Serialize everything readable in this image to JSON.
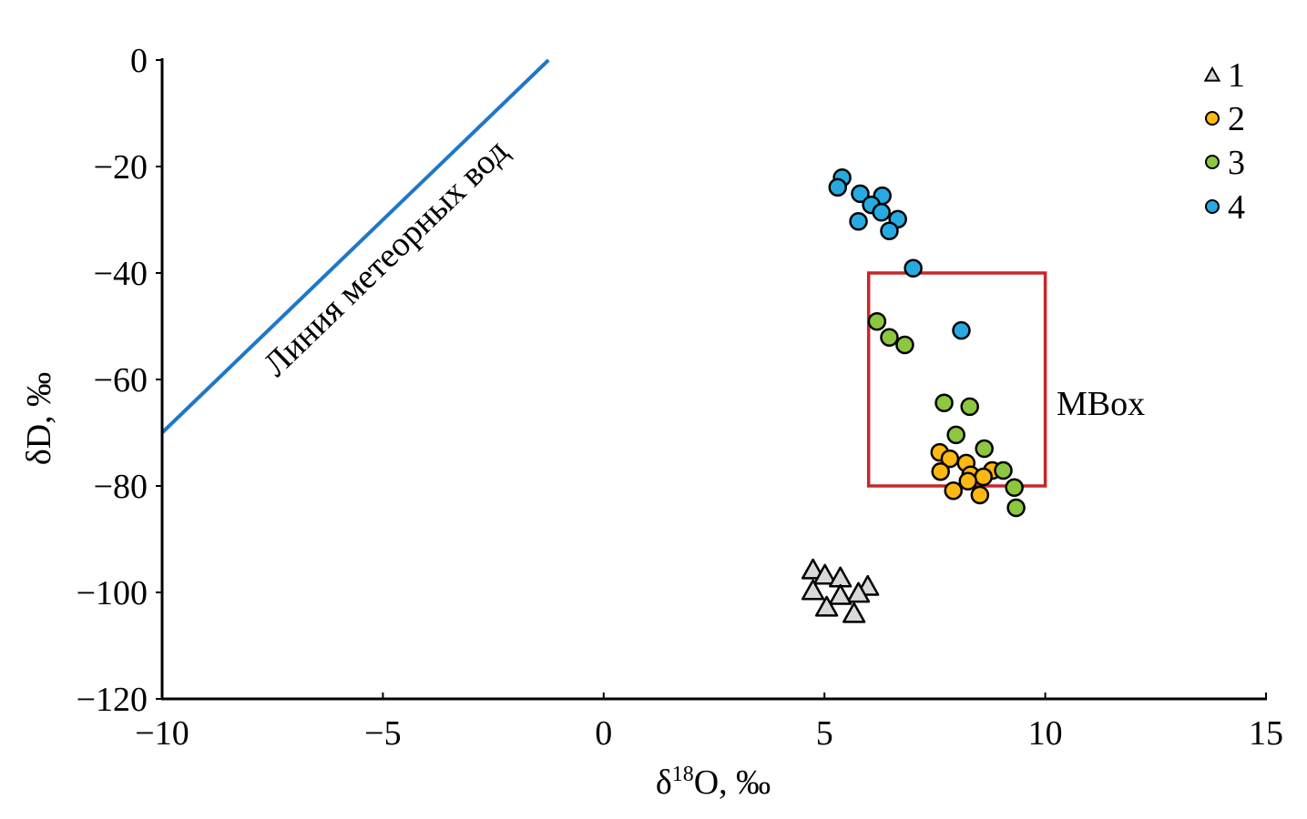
{
  "chart_data": {
    "type": "scatter",
    "xlabel_main": "δ",
    "xlabel_sup": "18",
    "xlabel_rest": "O, ‰",
    "ylabel": "δD, ‰",
    "xlim": [
      -10,
      15
    ],
    "ylim": [
      -120,
      0
    ],
    "xticks": [
      -10,
      -5,
      0,
      5,
      10,
      15
    ],
    "yticks": [
      0,
      -20,
      -40,
      -60,
      -80,
      -100,
      -120
    ],
    "xtick_labels": [
      "−10",
      "−5",
      "0",
      "5",
      "10",
      "15"
    ],
    "ytick_labels": [
      "0",
      "−20",
      "−40",
      "−60",
      "−80",
      "−100",
      "−120"
    ],
    "grid": false,
    "legend_position": "top-right",
    "meteoric_line": {
      "label": "Линия метеорных вод",
      "slope": 8,
      "intercept": 10,
      "color": "#1f77c8"
    },
    "box": {
      "label": "MBox",
      "x": [
        6,
        10
      ],
      "y": [
        -80,
        -40
      ],
      "color": "#c8262b"
    },
    "series": [
      {
        "name": "1",
        "marker": "triangle",
        "color": "#d9d9d9",
        "x": [
          4.74,
          5.01,
          5.36,
          4.74,
          5.98,
          5.77,
          5.36,
          5.05,
          5.67
        ],
        "y": [
          -95.9,
          -96.9,
          -97.4,
          -99.8,
          -99.0,
          -100.3,
          -100.7,
          -102.9,
          -104.1
        ]
      },
      {
        "name": "2",
        "marker": "circle",
        "color": "#fdb813",
        "x": [
          7.61,
          7.84,
          8.21,
          7.63,
          8.31,
          8.8,
          8.6,
          8.25,
          7.92,
          8.52
        ],
        "y": [
          -73.7,
          -74.9,
          -75.7,
          -77.3,
          -77.9,
          -77.1,
          -78.3,
          -79.1,
          -80.9,
          -81.7
        ]
      },
      {
        "name": "3",
        "marker": "circle",
        "color": "#8dc63f",
        "x": [
          6.19,
          6.47,
          6.82,
          7.71,
          8.29,
          7.98,
          8.62,
          9.05,
          9.3,
          9.34
        ],
        "y": [
          -49.1,
          -52.1,
          -53.5,
          -64.4,
          -65.1,
          -70.4,
          -73.0,
          -77.1,
          -80.3,
          -84.1
        ]
      },
      {
        "name": "4",
        "marker": "circle",
        "color": "#27aae1",
        "x": [
          5.4,
          5.3,
          5.81,
          6.31,
          6.06,
          6.29,
          6.66,
          5.77,
          6.47,
          7.01,
          8.1
        ],
        "y": [
          -22.1,
          -23.9,
          -25.1,
          -25.5,
          -27.2,
          -28.6,
          -29.9,
          -30.3,
          -32.1,
          -39.1,
          -50.8
        ]
      }
    ]
  }
}
